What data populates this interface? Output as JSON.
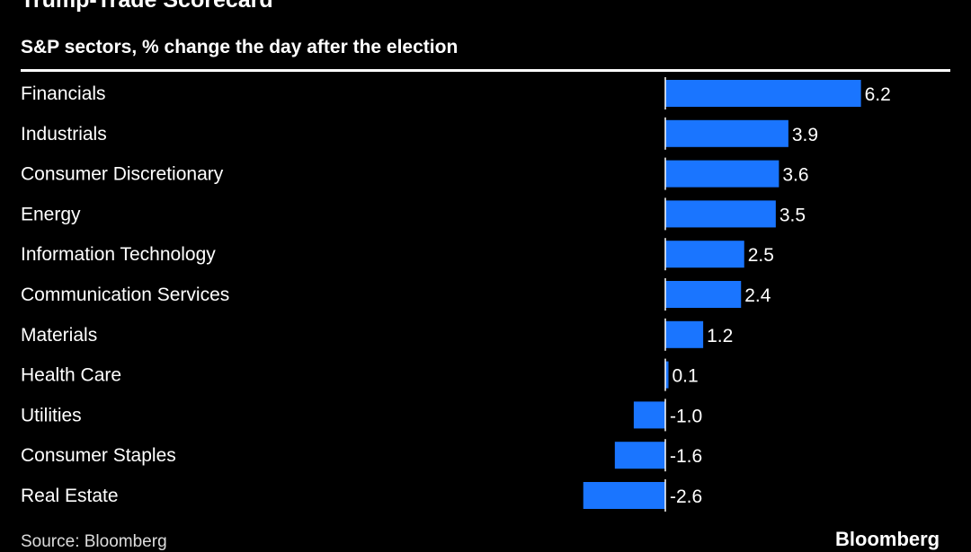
{
  "chart_data": {
    "type": "bar",
    "orientation": "horizontal",
    "title": "Trump-Trade Scorecard",
    "subtitle": "S&P sectors, % change the day after the election",
    "categories": [
      "Financials",
      "Industrials",
      "Consumer Discretionary",
      "Energy",
      "Information Technology",
      "Communication Services",
      "Materials",
      "Health Care",
      "Utilities",
      "Consumer Staples",
      "Real Estate"
    ],
    "values": [
      6.2,
      3.9,
      3.6,
      3.5,
      2.5,
      2.4,
      1.2,
      0.1,
      -1.0,
      -1.6,
      -2.6
    ],
    "data_labels": [
      "6.2",
      "3.9",
      "3.6",
      "3.5",
      "2.5",
      "2.4",
      "1.2",
      "0.1",
      "-1.0",
      "-1.6",
      "-2.6"
    ],
    "xlim": [
      -2.6,
      6.2
    ],
    "grid": false,
    "bar_color": "#1a75ff",
    "background": "#000000",
    "source": "Source: Bloomberg",
    "logo": "Bloomberg"
  }
}
